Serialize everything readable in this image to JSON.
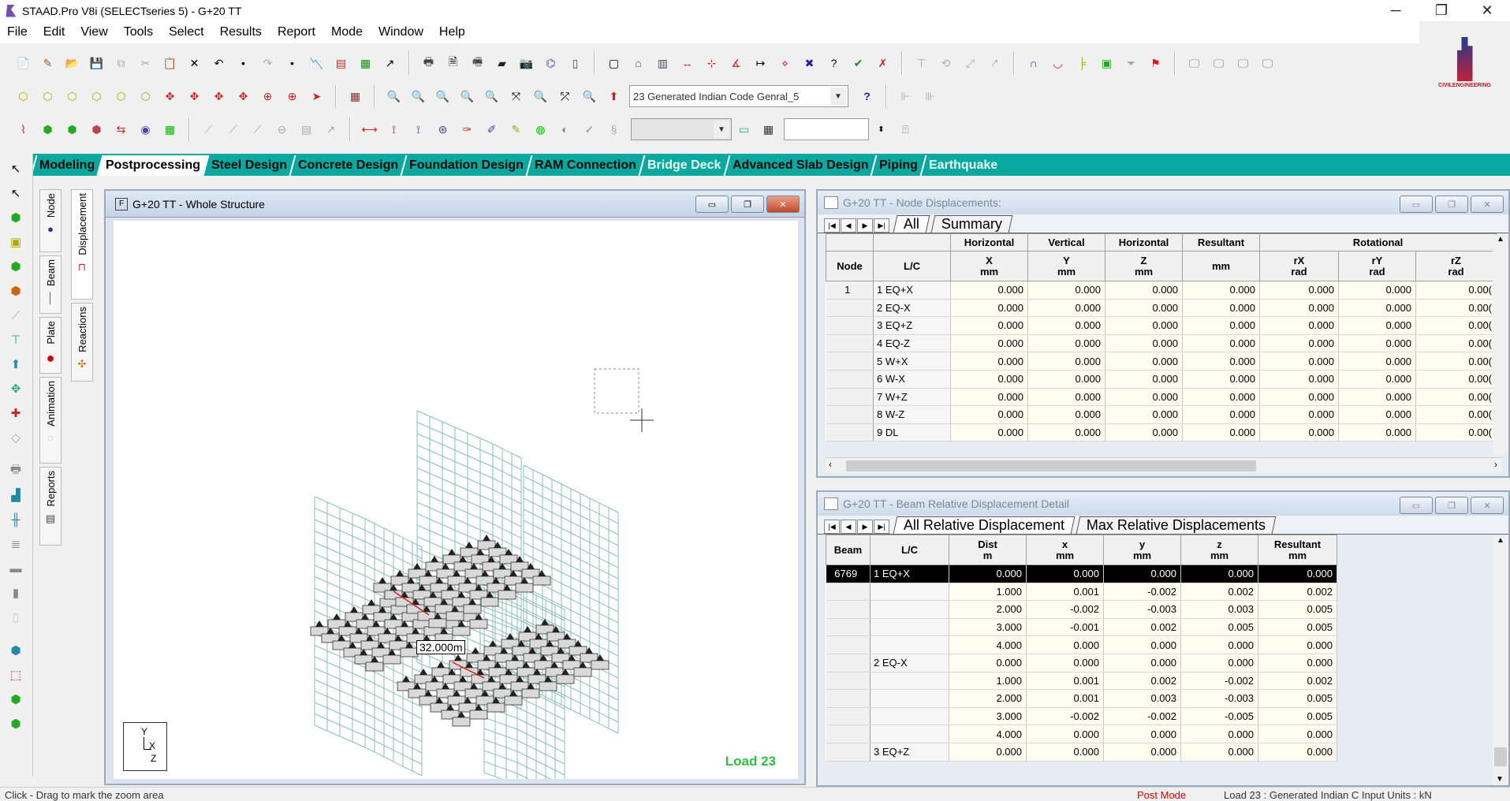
{
  "window": {
    "title": "STAAD.Pro V8i (SELECTseries 5) - G+20 TT",
    "min": "─",
    "max": "❐",
    "close": "✕"
  },
  "menu": [
    "File",
    "Edit",
    "View",
    "Tools",
    "Select",
    "Results",
    "Report",
    "Mode",
    "Window",
    "Help"
  ],
  "toolbar": {
    "load_case": "23 Generated Indian Code Genral_5",
    "help_icon": "?"
  },
  "tabs": [
    {
      "label": "Modeling",
      "state": "normal"
    },
    {
      "label": "Postprocessing",
      "state": "active"
    },
    {
      "label": "Steel Design",
      "state": "normal"
    },
    {
      "label": "Concrete Design",
      "state": "normal"
    },
    {
      "label": "Foundation Design",
      "state": "normal"
    },
    {
      "label": "RAM Connection",
      "state": "normal"
    },
    {
      "label": "Bridge Deck",
      "state": "light"
    },
    {
      "label": "Advanced Slab Design",
      "state": "normal"
    },
    {
      "label": "Piping",
      "state": "normal"
    },
    {
      "label": "Earthquake",
      "state": "light"
    }
  ],
  "side_tabs": {
    "node": "Node",
    "beam": "Beam",
    "plate": "Plate",
    "animation": "Animation",
    "reports": "Reports",
    "displacement": "Displacement",
    "reactions": "Reactions"
  },
  "structure_window": {
    "title": "G+20 TT - Whole Structure",
    "load_label": "Load 23",
    "dimension_label": "32.000m",
    "axis": {
      "y": "Y",
      "x": "X",
      "z": "Z"
    }
  },
  "node_disp": {
    "title": "G+20 TT - Node Displacements:",
    "tabs": [
      "All",
      "Summary"
    ],
    "group_headers": [
      "Horizontal",
      "Vertical",
      "Horizontal",
      "Resultant",
      "Rotational"
    ],
    "col_headers": [
      {
        "top": "Node",
        "bottom": ""
      },
      {
        "top": "L/C",
        "bottom": ""
      },
      {
        "top": "X",
        "bottom": "mm"
      },
      {
        "top": "Y",
        "bottom": "mm"
      },
      {
        "top": "Z",
        "bottom": "mm"
      },
      {
        "top": "",
        "bottom": "mm"
      },
      {
        "top": "rX",
        "bottom": "rad"
      },
      {
        "top": "rY",
        "bottom": "rad"
      },
      {
        "top": "rZ",
        "bottom": "rad"
      }
    ],
    "rows": [
      {
        "node": "1",
        "lc": "1 EQ+X",
        "v": [
          "0.000",
          "0.000",
          "0.000",
          "0.000",
          "0.000",
          "0.000",
          "0.00("
        ]
      },
      {
        "node": "",
        "lc": "2 EQ-X",
        "v": [
          "0.000",
          "0.000",
          "0.000",
          "0.000",
          "0.000",
          "0.000",
          "0.00("
        ]
      },
      {
        "node": "",
        "lc": "3 EQ+Z",
        "v": [
          "0.000",
          "0.000",
          "0.000",
          "0.000",
          "0.000",
          "0.000",
          "0.00("
        ]
      },
      {
        "node": "",
        "lc": "4 EQ-Z",
        "v": [
          "0.000",
          "0.000",
          "0.000",
          "0.000",
          "0.000",
          "0.000",
          "0.00("
        ]
      },
      {
        "node": "",
        "lc": "5 W+X",
        "v": [
          "0.000",
          "0.000",
          "0.000",
          "0.000",
          "0.000",
          "0.000",
          "0.00("
        ]
      },
      {
        "node": "",
        "lc": "6 W-X",
        "v": [
          "0.000",
          "0.000",
          "0.000",
          "0.000",
          "0.000",
          "0.000",
          "0.00("
        ]
      },
      {
        "node": "",
        "lc": "7 W+Z",
        "v": [
          "0.000",
          "0.000",
          "0.000",
          "0.000",
          "0.000",
          "0.000",
          "0.00("
        ]
      },
      {
        "node": "",
        "lc": "8 W-Z",
        "v": [
          "0.000",
          "0.000",
          "0.000",
          "0.000",
          "0.000",
          "0.000",
          "0.00("
        ]
      },
      {
        "node": "",
        "lc": "9 DL",
        "v": [
          "0.000",
          "0.000",
          "0.000",
          "0.000",
          "0.000",
          "0.000",
          "0.00("
        ]
      }
    ]
  },
  "beam_disp": {
    "title": "G+20 TT - Beam Relative Displacement Detail",
    "tabs": [
      "All Relative Displacement",
      "Max Relative Displacements"
    ],
    "col_headers": [
      {
        "top": "Beam",
        "bottom": ""
      },
      {
        "top": "L/C",
        "bottom": ""
      },
      {
        "top": "Dist",
        "bottom": "m"
      },
      {
        "top": "x",
        "bottom": "mm"
      },
      {
        "top": "y",
        "bottom": "mm"
      },
      {
        "top": "z",
        "bottom": "mm"
      },
      {
        "top": "Resultant",
        "bottom": "mm"
      }
    ],
    "rows": [
      {
        "beam": "6769",
        "lc": "1 EQ+X",
        "v": [
          "0.000",
          "0.000",
          "0.000",
          "0.000",
          "0.000"
        ],
        "selected": true
      },
      {
        "beam": "",
        "lc": "",
        "v": [
          "1.000",
          "0.001",
          "-0.002",
          "0.002",
          "0.002"
        ]
      },
      {
        "beam": "",
        "lc": "",
        "v": [
          "2.000",
          "-0.002",
          "-0.003",
          "0.003",
          "0.005"
        ]
      },
      {
        "beam": "",
        "lc": "",
        "v": [
          "3.000",
          "-0.001",
          "0.002",
          "0.005",
          "0.005"
        ]
      },
      {
        "beam": "",
        "lc": "",
        "v": [
          "4.000",
          "0.000",
          "0.000",
          "0.000",
          "0.000"
        ]
      },
      {
        "beam": "",
        "lc": "2 EQ-X",
        "v": [
          "0.000",
          "0.000",
          "0.000",
          "0.000",
          "0.000"
        ]
      },
      {
        "beam": "",
        "lc": "",
        "v": [
          "1.000",
          "0.001",
          "0.002",
          "-0.002",
          "0.002"
        ]
      },
      {
        "beam": "",
        "lc": "",
        "v": [
          "2.000",
          "0.001",
          "0.003",
          "-0.003",
          "0.005"
        ]
      },
      {
        "beam": "",
        "lc": "",
        "v": [
          "3.000",
          "-0.002",
          "-0.002",
          "-0.005",
          "0.005"
        ]
      },
      {
        "beam": "",
        "lc": "",
        "v": [
          "4.000",
          "0.000",
          "0.000",
          "0.000",
          "0.000"
        ]
      },
      {
        "beam": "",
        "lc": "3 EQ+Z",
        "v": [
          "0.000",
          "0.000",
          "0.000",
          "0.000",
          "0.000"
        ]
      }
    ]
  },
  "status": {
    "left": "Click - Drag to mark the zoom area",
    "mode": "Post Mode",
    "right": "Load 23 : Generated Indian C  Input Units : kN"
  }
}
